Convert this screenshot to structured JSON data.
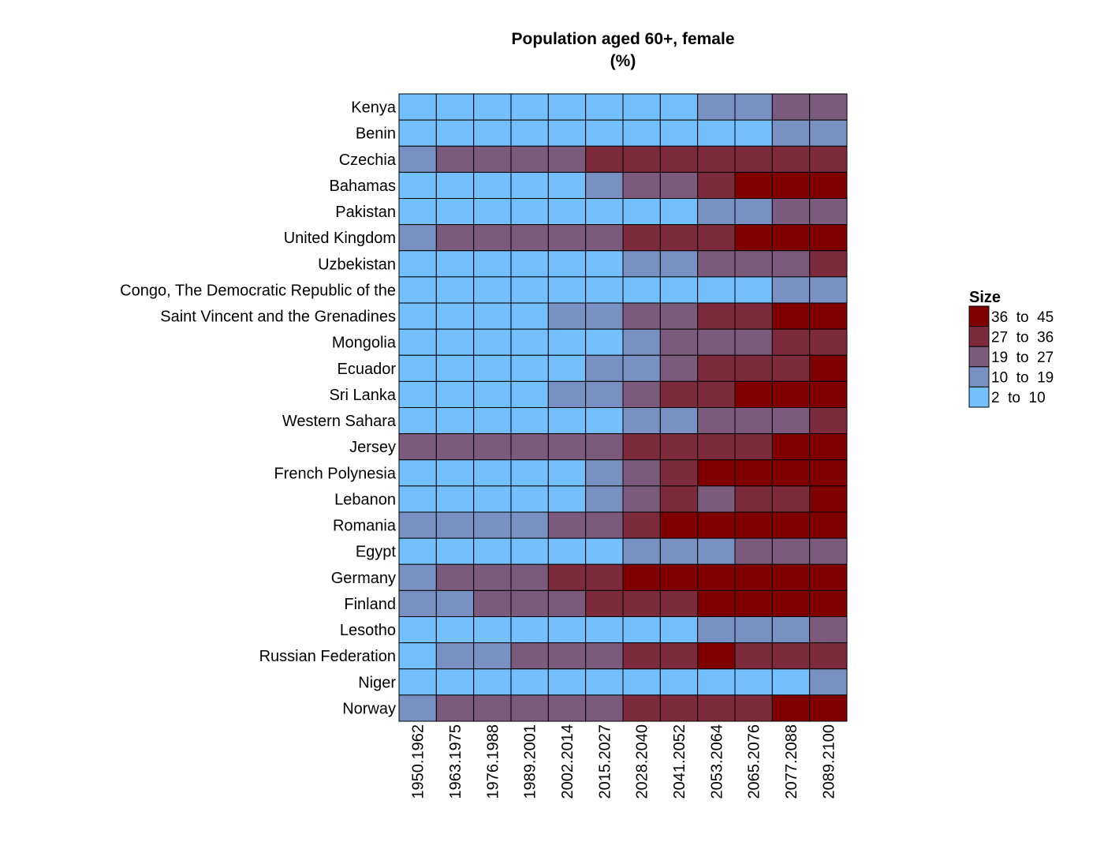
{
  "chart_data": {
    "type": "heatmap",
    "title": "Population aged 60+, female",
    "subtitle": "(%)",
    "columns": [
      "1950.1962",
      "1963.1975",
      "1976.1988",
      "1989.2001",
      "2002.2014",
      "2015.2027",
      "2028.2040",
      "2041.2052",
      "2053.2064",
      "2065.2076",
      "2077.2088",
      "2089.2100"
    ],
    "rows": [
      "Kenya",
      "Benin",
      "Czechia",
      "Bahamas",
      "Pakistan",
      "United Kingdom",
      "Uzbekistan",
      "Congo, The Democratic Republic of the",
      "Saint Vincent and the Grenadines",
      "Mongolia",
      "Ecuador",
      "Sri Lanka",
      "Western Sahara",
      "Jersey",
      "French Polynesia",
      "Lebanon",
      "Romania",
      "Egypt",
      "Germany",
      "Finland",
      "Lesotho",
      "Russian Federation",
      "Niger",
      "Norway"
    ],
    "bin_matrix": [
      [
        0,
        0,
        0,
        0,
        0,
        0,
        0,
        0,
        1,
        1,
        2,
        2
      ],
      [
        0,
        0,
        0,
        0,
        0,
        0,
        0,
        0,
        0,
        0,
        1,
        1
      ],
      [
        1,
        2,
        2,
        2,
        2,
        3,
        3,
        3,
        3,
        3,
        3,
        3
      ],
      [
        0,
        0,
        0,
        0,
        0,
        1,
        2,
        2,
        3,
        4,
        4,
        4
      ],
      [
        0,
        0,
        0,
        0,
        0,
        0,
        0,
        0,
        1,
        1,
        2,
        2
      ],
      [
        1,
        2,
        2,
        2,
        2,
        2,
        3,
        3,
        3,
        4,
        4,
        4
      ],
      [
        0,
        0,
        0,
        0,
        0,
        0,
        1,
        1,
        2,
        2,
        2,
        3
      ],
      [
        0,
        0,
        0,
        0,
        0,
        0,
        0,
        0,
        0,
        0,
        1,
        1
      ],
      [
        0,
        0,
        0,
        0,
        1,
        1,
        2,
        2,
        3,
        3,
        4,
        4
      ],
      [
        0,
        0,
        0,
        0,
        0,
        0,
        1,
        2,
        2,
        2,
        3,
        3
      ],
      [
        0,
        0,
        0,
        0,
        0,
        1,
        1,
        2,
        3,
        3,
        3,
        4
      ],
      [
        0,
        0,
        0,
        0,
        1,
        1,
        2,
        3,
        3,
        4,
        4,
        4
      ],
      [
        0,
        0,
        0,
        0,
        0,
        0,
        1,
        1,
        2,
        2,
        2,
        3
      ],
      [
        2,
        2,
        2,
        2,
        2,
        2,
        3,
        3,
        3,
        3,
        4,
        4
      ],
      [
        0,
        0,
        0,
        0,
        0,
        1,
        2,
        3,
        4,
        4,
        4,
        4
      ],
      [
        0,
        0,
        0,
        0,
        0,
        1,
        2,
        3,
        2,
        3,
        3,
        4
      ],
      [
        1,
        1,
        1,
        1,
        2,
        2,
        3,
        4,
        4,
        4,
        4,
        4
      ],
      [
        0,
        0,
        0,
        0,
        0,
        0,
        1,
        1,
        1,
        2,
        2,
        2
      ],
      [
        1,
        2,
        2,
        2,
        3,
        3,
        4,
        4,
        4,
        4,
        4,
        4
      ],
      [
        1,
        1,
        2,
        2,
        2,
        3,
        3,
        3,
        4,
        4,
        4,
        4
      ],
      [
        0,
        0,
        0,
        0,
        0,
        0,
        0,
        0,
        1,
        1,
        1,
        2
      ],
      [
        0,
        1,
        1,
        2,
        2,
        2,
        3,
        3,
        4,
        3,
        3,
        3
      ],
      [
        0,
        0,
        0,
        0,
        0,
        0,
        0,
        0,
        0,
        0,
        0,
        1
      ],
      [
        1,
        2,
        2,
        2,
        2,
        2,
        3,
        3,
        3,
        3,
        4,
        4
      ]
    ],
    "legend": {
      "title": "Size",
      "placement": "right",
      "bins": [
        {
          "label": "2  to  10",
          "range": [
            2,
            10
          ],
          "color": "#74c0ff"
        },
        {
          "label": "10  to  19",
          "range": [
            10,
            19
          ],
          "color": "#7891c2"
        },
        {
          "label": "19  to  27",
          "range": [
            19,
            27
          ],
          "color": "#7b5a7d"
        },
        {
          "label": "27  to  36",
          "range": [
            27,
            36
          ],
          "color": "#7c2a3c"
        },
        {
          "label": "36  to  45",
          "range": [
            36,
            45
          ],
          "color": "#800000"
        }
      ]
    },
    "grid": false
  }
}
